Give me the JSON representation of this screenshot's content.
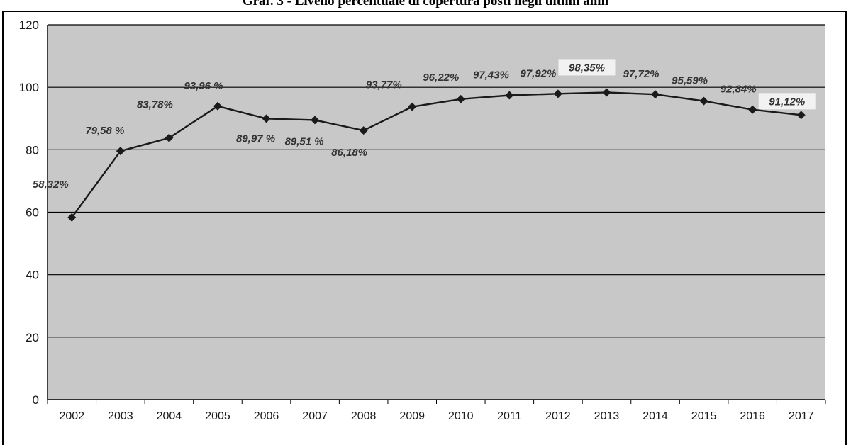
{
  "chart_data": {
    "type": "line",
    "title": "Graf. 3 - Livello percentuale di copertura posti negli ultimi anni",
    "xlabel": "",
    "ylabel": "",
    "categories": [
      "2002",
      "2003",
      "2004",
      "2005",
      "2006",
      "2007",
      "2008",
      "2009",
      "2010",
      "2011",
      "2012",
      "2013",
      "2014",
      "2015",
      "2016",
      "2017"
    ],
    "series": [
      {
        "values": [
          58.32,
          79.58,
          83.78,
          93.96,
          89.97,
          89.51,
          86.18,
          93.77,
          96.22,
          97.43,
          97.92,
          98.35,
          97.72,
          95.59,
          92.84,
          91.12
        ],
        "labels": [
          "58,32%",
          "79,58 %",
          "83,78%",
          "93,96 %",
          "89,97 %",
          "89,51 %",
          "86,18%",
          "93,77%",
          "96,22%",
          "97,43%",
          "97,92%",
          "98,35%",
          "97,72%",
          "95,59%",
          "92,84%",
          "91,12%"
        ]
      }
    ],
    "ylim": [
      0,
      120
    ],
    "yticks": [
      "0",
      "20",
      "40",
      "60",
      "80",
      "100",
      "120"
    ],
    "grid": true,
    "legend": "none",
    "colors": {
      "plot_bg": "#c8c8c8",
      "line": "#1a1a1a",
      "grid": "#000000",
      "label_box": "#f2f2f2"
    }
  }
}
